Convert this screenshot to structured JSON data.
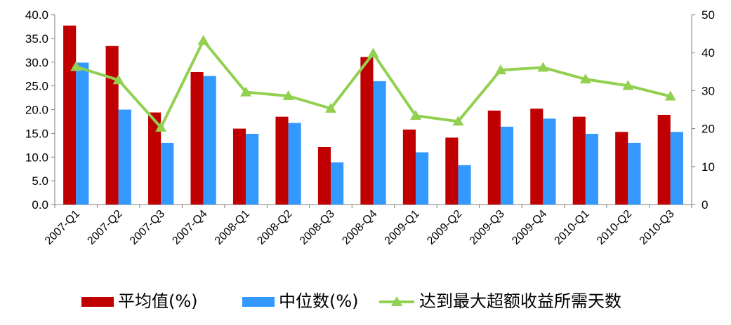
{
  "chart_data": {
    "type": "bar",
    "categories": [
      "2007-Q1",
      "2007-Q2",
      "2007-Q3",
      "2007-Q4",
      "2008-Q1",
      "2008-Q2",
      "2008-Q3",
      "2008-Q4",
      "2009-Q1",
      "2009-Q2",
      "2009-Q3",
      "2009-Q4",
      "2010-Q1",
      "2010-Q2",
      "2010-Q3"
    ],
    "series": [
      {
        "name": "平均值(%)",
        "type": "bar",
        "axis": "left",
        "color": "#C00000",
        "values": [
          37.7,
          33.4,
          19.4,
          27.9,
          16.0,
          18.5,
          12.1,
          31.1,
          15.8,
          14.1,
          19.8,
          20.2,
          18.5,
          15.3,
          18.9
        ]
      },
      {
        "name": "中位数(%)",
        "type": "bar",
        "axis": "left",
        "color": "#3399FF",
        "values": [
          29.9,
          20.0,
          13.0,
          27.1,
          14.9,
          17.2,
          8.9,
          26.0,
          11.0,
          8.3,
          16.4,
          18.1,
          14.9,
          13.0,
          15.3
        ]
      },
      {
        "name": "达到最大超额收益所需天数",
        "type": "line",
        "axis": "right",
        "color": "#92D050",
        "marker": "triangle",
        "values": [
          36.3,
          32.8,
          20.3,
          43.2,
          29.6,
          28.6,
          25.3,
          39.8,
          23.4,
          21.9,
          35.4,
          36.1,
          33.0,
          31.3,
          28.5
        ]
      }
    ],
    "y_left": {
      "ylim": [
        0,
        40
      ],
      "ticks": [
        "0.0",
        "5.0",
        "10.0",
        "15.0",
        "20.0",
        "25.0",
        "30.0",
        "35.0",
        "40.0"
      ]
    },
    "y_right": {
      "ylim": [
        0,
        50
      ],
      "ticks": [
        "0",
        "10",
        "20",
        "30",
        "40",
        "50"
      ]
    },
    "grid": false,
    "legend": "bottom",
    "xlabel": "",
    "ylabel": ""
  }
}
